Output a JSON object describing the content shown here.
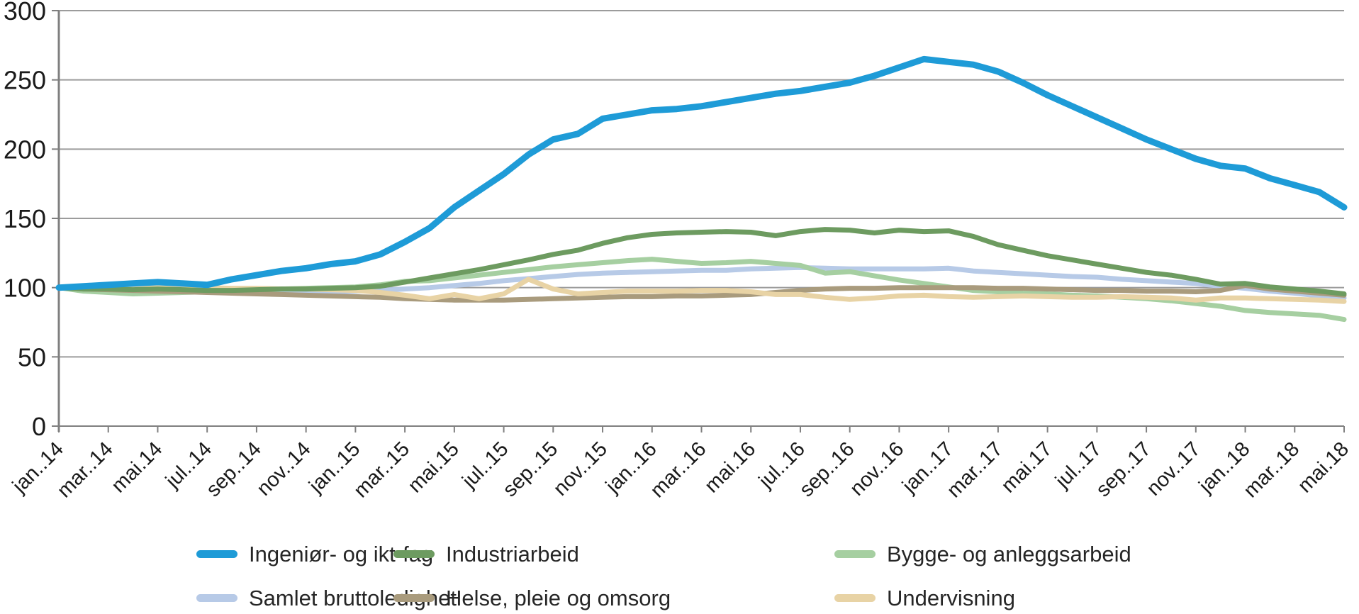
{
  "chart_data": {
    "type": "line",
    "title": "",
    "grid": "horizontal",
    "y_axis": {
      "min": 0,
      "max": 300,
      "step": 50,
      "tick_labels": [
        "0",
        "50",
        "100",
        "150",
        "200",
        "250",
        "300"
      ]
    },
    "x_axis": {
      "first_month": "jan 2014",
      "last_month": "mai 2018",
      "months_total": 53,
      "tick_every_months": 2,
      "tick_labels": [
        "jan..14",
        "mar..14",
        "mai.14",
        "jul..14",
        "sep..14",
        "nov..14",
        "jan..15",
        "mar..15",
        "mai.15",
        "jul..15",
        "sep..15",
        "nov..15",
        "jan..16",
        "mar..16",
        "mai.16",
        "jul..16",
        "sep..16",
        "nov..16",
        "jan..17",
        "mar..17",
        "mai.17",
        "jul..17",
        "sep..17",
        "nov..17",
        "jan..18",
        "mar..18",
        "mai.18"
      ]
    },
    "legend_position": "bottom",
    "series": [
      {
        "name": "Ingeniør- og ikt-fag",
        "color": "#1E9BD7",
        "line_width": 9,
        "values": [
          100,
          101,
          102,
          103,
          104,
          103,
          102,
          106,
          109,
          112,
          114,
          117,
          119,
          124,
          133,
          143,
          158,
          170,
          182,
          196,
          207,
          211,
          222,
          225,
          228,
          229,
          231,
          234,
          237,
          240,
          242,
          245,
          248,
          253,
          259,
          265,
          263,
          261,
          256,
          248,
          239,
          231,
          223,
          215,
          207,
          200,
          193,
          188,
          186,
          179,
          174,
          169,
          158
        ]
      },
      {
        "name": "Industriarbeid",
        "color": "#6D9B60",
        "line_width": 7,
        "values": [
          100,
          99,
          99,
          98.5,
          99,
          98.5,
          98,
          98,
          98.5,
          99,
          99,
          99.5,
          100,
          101,
          104,
          107,
          110,
          113,
          116.5,
          120,
          124,
          127,
          132,
          136,
          138.5,
          139.5,
          140,
          140.5,
          140,
          137.5,
          140.5,
          142,
          141.5,
          139.5,
          141.5,
          140.5,
          141,
          137,
          131,
          127,
          123,
          120,
          117,
          114,
          111,
          109,
          106,
          102.5,
          103,
          100.5,
          99,
          97.5,
          95.5
        ]
      },
      {
        "name": "Bygge- og anleggsarbeid",
        "color": "#A6CFA1",
        "line_width": 7,
        "values": [
          100,
          97.5,
          96.5,
          95.5,
          96,
          96.5,
          97,
          97.5,
          98,
          99,
          99.5,
          100,
          100.5,
          102,
          104.5,
          105,
          107,
          109,
          111,
          113,
          115,
          116.5,
          118,
          119.5,
          120.5,
          119,
          117.5,
          118,
          119,
          117.5,
          116,
          110.5,
          111.5,
          108.5,
          105.5,
          103,
          100.5,
          98,
          97,
          96,
          95.5,
          94.5,
          94,
          93,
          92,
          90.5,
          88.5,
          86.5,
          83.5,
          82,
          81,
          80,
          77
        ]
      },
      {
        "name": "Samlet bruttoledighet",
        "color": "#B7CAE7",
        "line_width": 7,
        "values": [
          100,
          99,
          98.5,
          98,
          98,
          97.5,
          97.5,
          97,
          97,
          97,
          97.5,
          97,
          97.5,
          98,
          99,
          100,
          101.5,
          103,
          105,
          106.5,
          108,
          109.5,
          110.5,
          111,
          111.5,
          112,
          112.5,
          112.5,
          113.5,
          114,
          114.5,
          114,
          113.5,
          113.5,
          113.5,
          113.5,
          114,
          112,
          111,
          110,
          109,
          108,
          107.5,
          106,
          105,
          104,
          103,
          101,
          99.5,
          97.5,
          96,
          94,
          92.5
        ]
      },
      {
        "name": "Helse, pleie og omsorg",
        "color": "#A99B7D",
        "line_width": 7,
        "values": [
          100,
          99,
          98.5,
          98,
          97.5,
          97,
          96.5,
          96,
          95.5,
          95,
          94.5,
          94,
          93.5,
          93,
          92,
          91.5,
          91,
          91,
          91,
          91.5,
          92,
          92.5,
          93,
          93.5,
          93.5,
          94,
          94,
          94.5,
          95,
          96.5,
          98,
          99,
          99.5,
          99.5,
          100,
          100,
          100,
          100,
          99.5,
          99.5,
          99,
          98.5,
          98,
          98,
          97.5,
          97.5,
          97,
          98,
          101.5,
          99,
          97.5,
          96,
          94.5
        ]
      },
      {
        "name": "Undervisning",
        "color": "#E8D3A5",
        "line_width": 7,
        "values": [
          100,
          100,
          100,
          100,
          100,
          100,
          100,
          99.5,
          99.5,
          99,
          99,
          98.5,
          98,
          96.5,
          94.5,
          92,
          95,
          92,
          95.5,
          106,
          99,
          95.5,
          96.5,
          97.5,
          97.5,
          97.5,
          98,
          98,
          97,
          95,
          95,
          93,
          91.5,
          92.5,
          94,
          94.5,
          93.5,
          93,
          93.5,
          94,
          93.5,
          93,
          93,
          93.5,
          93,
          92.5,
          91,
          92.5,
          92.5,
          92,
          91.5,
          91,
          90
        ]
      }
    ],
    "colors": {
      "gridline": "#9C9C9C",
      "axis": "#7F7F7F",
      "tick_text": "#1A1A1A"
    }
  }
}
